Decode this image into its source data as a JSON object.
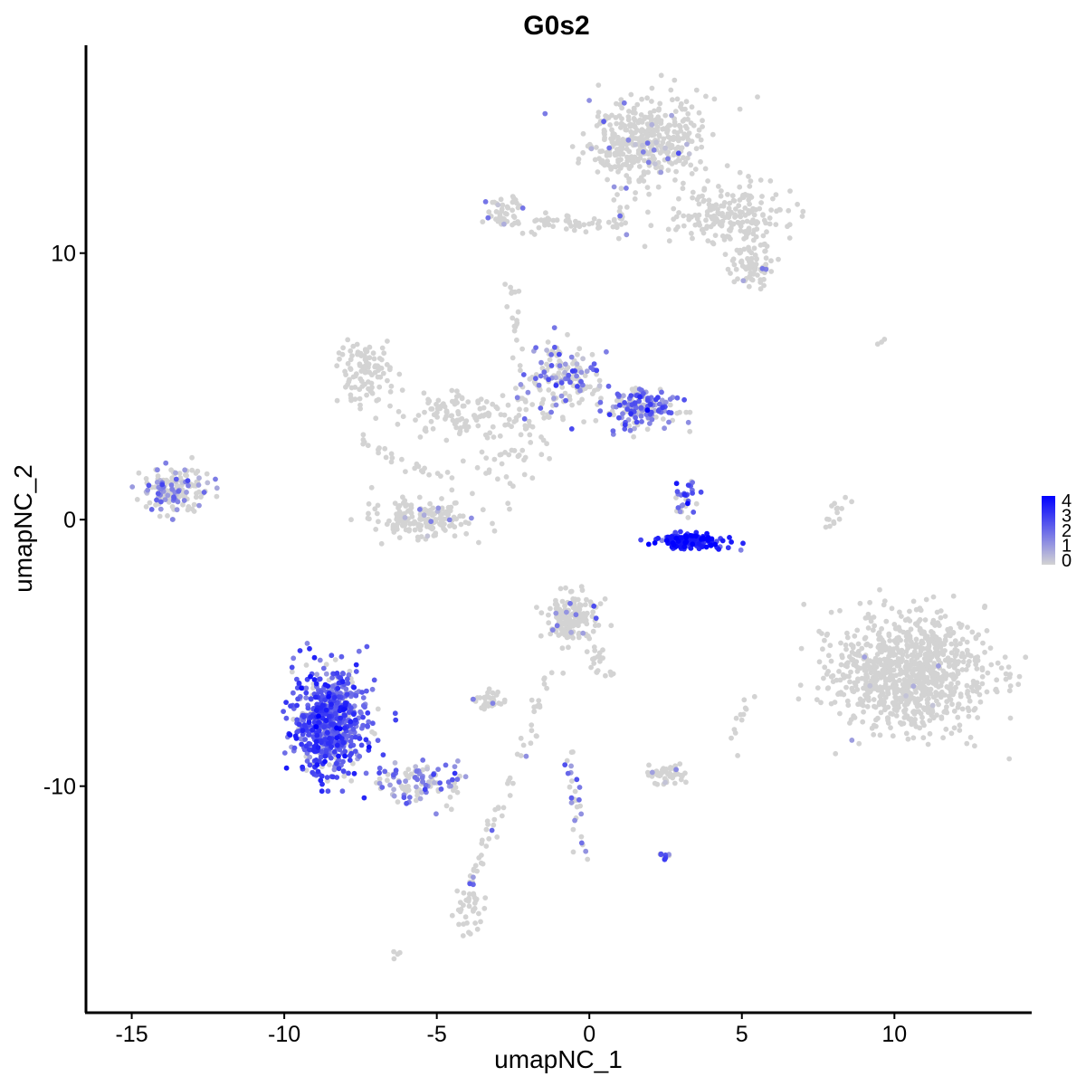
{
  "chart_data": {
    "type": "scatter",
    "title": "G0s2",
    "xlabel": "umapNC_1",
    "ylabel": "umapNC_2",
    "xlim": [
      -16.5,
      14.5
    ],
    "ylim": [
      -18.5,
      17.8
    ],
    "xticks": [
      -15,
      -10,
      -5,
      0,
      5,
      10
    ],
    "yticks": [
      -10,
      0,
      10
    ],
    "xtick_labels": [
      "-15",
      "-10",
      "-5",
      "0",
      "5",
      "10"
    ],
    "ytick_labels": [
      "-10",
      "0",
      "10"
    ],
    "grid": false,
    "legend": {
      "placement": "right",
      "title": "",
      "labels": [
        "4",
        "3",
        "2",
        "1",
        "0"
      ],
      "values": [
        4,
        3,
        2,
        1,
        0
      ],
      "color_low": "#d3d3d3",
      "color_high": "#0000ff"
    },
    "point_color_scale": {
      "min": 0,
      "max": 4,
      "low": "#d3d3d3",
      "high": "#0000ff"
    },
    "clusters": [
      {
        "x": 1.8,
        "y": 14.2,
        "sx": 1.3,
        "sy": 1.1,
        "n": 420,
        "expr_frac": 0.04,
        "expr_mean": 1.0
      },
      {
        "x": 4.7,
        "y": 11.3,
        "sx": 1.3,
        "sy": 0.9,
        "n": 200,
        "expr_frac": 0.0,
        "expr_mean": 0.0
      },
      {
        "x": 5.3,
        "y": 9.5,
        "sx": 0.5,
        "sy": 0.5,
        "n": 70,
        "expr_frac": 0.05,
        "expr_mean": 1.0
      },
      {
        "x": -2.8,
        "y": 11.5,
        "sx": 0.4,
        "sy": 0.5,
        "n": 40,
        "expr_frac": 0.1,
        "expr_mean": 1.5
      },
      {
        "x": -0.8,
        "y": 11.1,
        "sx": 1.2,
        "sy": 0.25,
        "n": 50,
        "expr_frac": 0.02,
        "expr_mean": 1.0
      },
      {
        "x": -7.3,
        "y": 5.5,
        "sx": 0.6,
        "sy": 0.8,
        "n": 110,
        "expr_frac": 0.0,
        "expr_mean": 0.0
      },
      {
        "x": -4.5,
        "y": 4.0,
        "sx": 1.0,
        "sy": 0.6,
        "n": 90,
        "expr_frac": 0.0,
        "expr_mean": 0.0
      },
      {
        "x": -2.8,
        "y": 2.8,
        "sx": 1.2,
        "sy": 1.2,
        "n": 60,
        "expr_frac": 0.0,
        "expr_mean": 0.0
      },
      {
        "x": -0.9,
        "y": 5.2,
        "sx": 0.8,
        "sy": 0.9,
        "n": 160,
        "expr_frac": 0.35,
        "expr_mean": 1.6
      },
      {
        "x": 1.7,
        "y": 4.2,
        "sx": 0.75,
        "sy": 0.55,
        "n": 170,
        "expr_frac": 0.6,
        "expr_mean": 1.8
      },
      {
        "x": -13.6,
        "y": 1.1,
        "sx": 0.75,
        "sy": 0.55,
        "n": 170,
        "expr_frac": 0.35,
        "expr_mean": 1.4
      },
      {
        "x": -5.5,
        "y": 0.0,
        "sx": 1.1,
        "sy": 0.45,
        "n": 170,
        "expr_frac": 0.04,
        "expr_mean": 1.0
      },
      {
        "x": 3.1,
        "y": 0.7,
        "sx": 0.3,
        "sy": 0.5,
        "n": 30,
        "expr_frac": 0.7,
        "expr_mean": 2.2
      },
      {
        "x": 3.3,
        "y": -0.8,
        "sx": 0.7,
        "sy": 0.2,
        "n": 160,
        "expr_frac": 1.0,
        "expr_mean": 3.2
      },
      {
        "x": 10.5,
        "y": -5.8,
        "sx": 1.7,
        "sy": 1.4,
        "n": 900,
        "expr_frac": 0.01,
        "expr_mean": 1.0
      },
      {
        "x": -0.6,
        "y": -3.6,
        "sx": 0.6,
        "sy": 0.6,
        "n": 160,
        "expr_frac": 0.05,
        "expr_mean": 1.2
      },
      {
        "x": -8.5,
        "y": -7.6,
        "sx": 0.8,
        "sy": 1.3,
        "n": 650,
        "expr_frac": 0.88,
        "expr_mean": 2.3
      },
      {
        "x": -5.5,
        "y": -9.9,
        "sx": 1.0,
        "sy": 0.5,
        "n": 110,
        "expr_frac": 0.55,
        "expr_mean": 1.5
      },
      {
        "x": -3.9,
        "y": -14.7,
        "sx": 0.35,
        "sy": 0.6,
        "n": 35,
        "expr_frac": 0.0,
        "expr_mean": 0.0
      },
      {
        "x": -3.2,
        "y": -6.8,
        "sx": 0.35,
        "sy": 0.25,
        "n": 35,
        "expr_frac": 0.03,
        "expr_mean": 1.5
      },
      {
        "x": 2.5,
        "y": -9.6,
        "sx": 0.5,
        "sy": 0.25,
        "n": 50,
        "expr_frac": 0.05,
        "expr_mean": 1.0
      },
      {
        "x": 2.4,
        "y": -12.6,
        "sx": 0.12,
        "sy": 0.2,
        "n": 10,
        "expr_frac": 0.6,
        "expr_mean": 2.0
      },
      {
        "x": 0.3,
        "y": -5.3,
        "sx": 0.35,
        "sy": 0.4,
        "n": 20,
        "expr_frac": 0.0,
        "expr_mean": 0.0
      },
      {
        "x": -6.3,
        "y": -16.3,
        "sx": 0.1,
        "sy": 0.1,
        "n": 4,
        "expr_frac": 0.0,
        "expr_mean": 0.0
      },
      {
        "x": 9.5,
        "y": 6.7,
        "sx": 0.2,
        "sy": 0.1,
        "n": 3,
        "expr_frac": 0.0,
        "expr_mean": 0.0
      }
    ],
    "trails": [
      {
        "from": [
          -2.5,
          8.8
        ],
        "to": [
          -2.0,
          1.5
        ],
        "n": 35,
        "expr_frac": 0.05
      },
      {
        "from": [
          -1.2,
          -5.5
        ],
        "to": [
          -4.2,
          -14.5
        ],
        "n": 60,
        "expr_frac": 0.1
      },
      {
        "from": [
          -0.7,
          -8.5
        ],
        "to": [
          -0.2,
          -12.8
        ],
        "n": 30,
        "expr_frac": 0.55
      },
      {
        "from": [
          7.8,
          -0.5
        ],
        "to": [
          8.3,
          1.0
        ],
        "n": 15,
        "expr_frac": 0.0
      },
      {
        "from": [
          0.8,
          12.5
        ],
        "to": [
          1.1,
          10.6
        ],
        "n": 15,
        "expr_frac": 0.1
      },
      {
        "from": [
          -7.5,
          3.0
        ],
        "to": [
          -4.6,
          1.2
        ],
        "n": 25,
        "expr_frac": 0.0
      },
      {
        "from": [
          4.6,
          -8.8
        ],
        "to": [
          5.2,
          -6.8
        ],
        "n": 12,
        "expr_frac": 0.0
      }
    ]
  }
}
